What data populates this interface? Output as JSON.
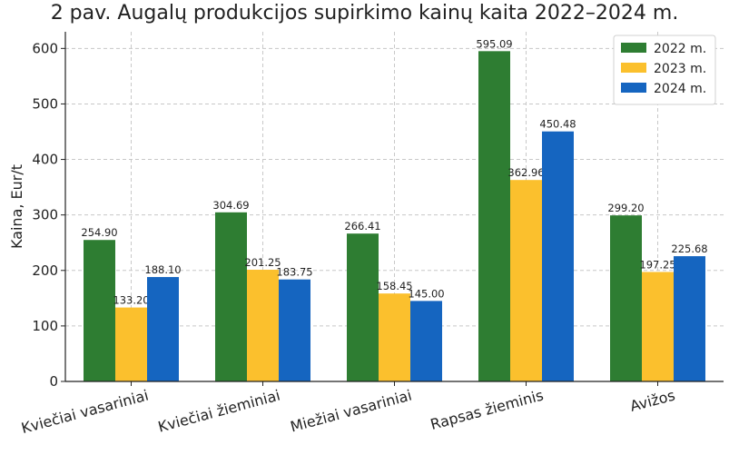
{
  "chart_data": {
    "type": "bar",
    "title": "2 pav. Augalų produkcijos supirkimo kainų kaita 2022–2024 m.",
    "xlabel": "",
    "ylabel": "Kaina, Eur/t",
    "ylim": [
      0,
      630
    ],
    "yticks": [
      0,
      100,
      200,
      300,
      400,
      500,
      600
    ],
    "grid": true,
    "legend_position": "top-right",
    "categories": [
      "Kviečiai vasariniai",
      "Kviečiai žieminiai",
      "Miežiai vasariniai",
      "Rapsas žieminis",
      "Avižos"
    ],
    "series": [
      {
        "name": "2022 m.",
        "color": "#2e7d32",
        "values": [
          254.9,
          304.69,
          266.41,
          595.09,
          299.2
        ],
        "labels": [
          "254.90",
          "304.69",
          "266.41",
          "595.09",
          "299.20"
        ]
      },
      {
        "name": "2023 m.",
        "color": "#fbc02d",
        "values": [
          133.2,
          201.25,
          158.45,
          362.96,
          197.25
        ],
        "labels": [
          "133.20",
          "201.25",
          "158.45",
          "362.96",
          "197.25"
        ]
      },
      {
        "name": "2024 m.",
        "color": "#1565c0",
        "values": [
          188.1,
          183.75,
          145.0,
          450.48,
          225.68
        ],
        "labels": [
          "188.10",
          "183.75",
          "145.00",
          "450.48",
          "225.68"
        ]
      }
    ]
  }
}
